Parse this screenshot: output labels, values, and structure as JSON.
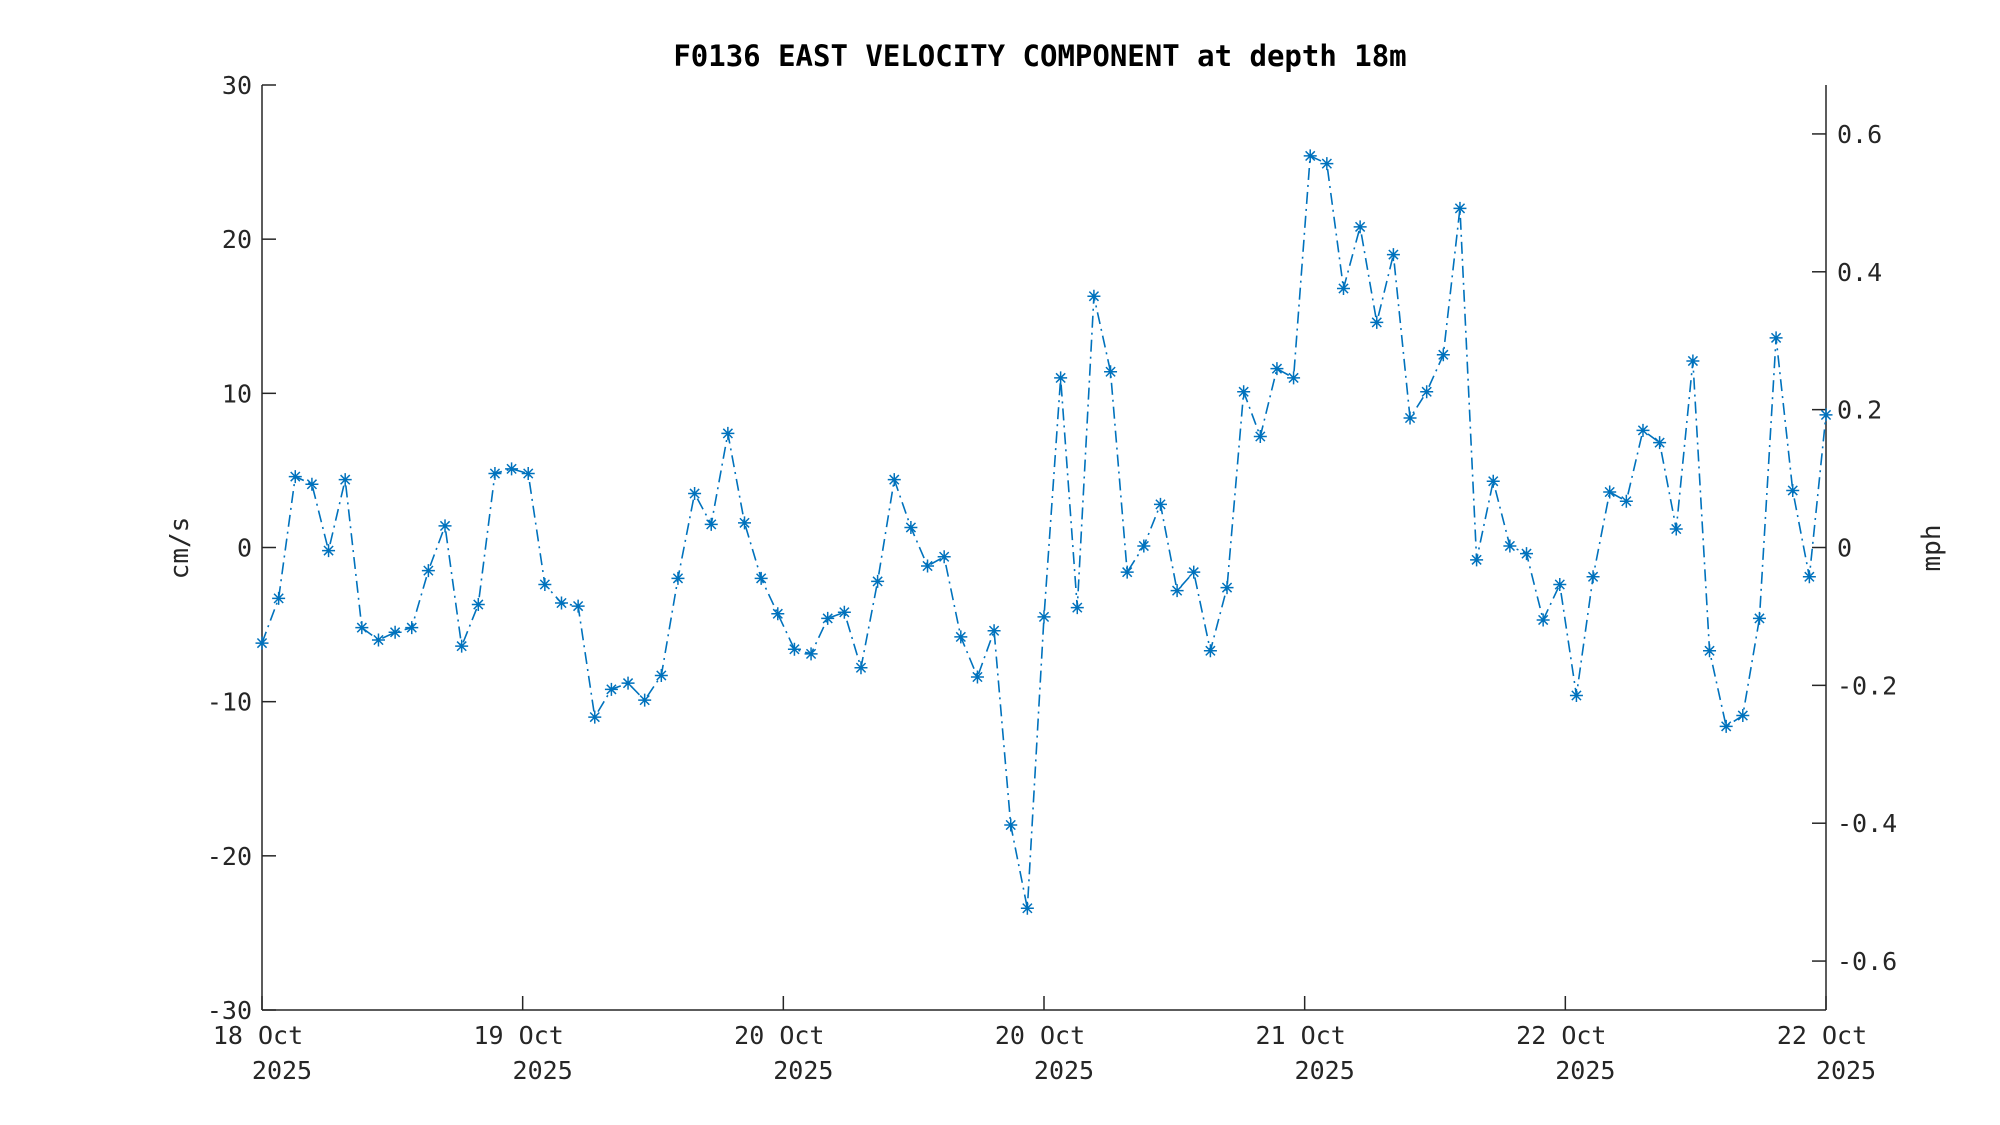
{
  "chart_data": {
    "type": "line",
    "title": "F0136 EAST VELOCITY COMPONENT at depth 18m",
    "xlabel": "",
    "ylabel_left": "cm/s",
    "ylabel_right": "mph",
    "ylim_left": [
      -30,
      30
    ],
    "ylim_right": [
      -0.671,
      0.671
    ],
    "y_ticks_left": [
      -30,
      -20,
      -10,
      0,
      10,
      20,
      30
    ],
    "y_tick_labels_left": [
      "-30",
      "-20",
      "-10",
      "0",
      "10",
      "20",
      "30"
    ],
    "y_ticks_right": [
      -0.6,
      -0.4,
      -0.2,
      0,
      0.2,
      0.4,
      0.6
    ],
    "y_tick_labels_right": [
      "-0.6",
      "-0.4",
      "-0.2",
      "0",
      "0.2",
      "0.4",
      "0.6"
    ],
    "x_tick_labels": [
      {
        "line1": "18 Oct",
        "line2": "2025"
      },
      {
        "line1": "19 Oct",
        "line2": "2025"
      },
      {
        "line1": "20 Oct",
        "line2": "2025"
      },
      {
        "line1": "20 Oct",
        "line2": "2025"
      },
      {
        "line1": "21 Oct",
        "line2": "2025"
      },
      {
        "line1": "22 Oct",
        "line2": "2025"
      },
      {
        "line1": "22 Oct",
        "line2": "2025"
      }
    ],
    "grid": false,
    "line_style": "dash-dot",
    "marker": "asterisk",
    "colors": {
      "series": "#0072BD",
      "axes": "#262626",
      "background": "#ffffff"
    },
    "series": [
      {
        "values": [
          -6.2,
          -3.3,
          4.6,
          4.1,
          -0.2,
          4.4,
          -5.2,
          -6.0,
          -5.5,
          -5.2,
          -1.5,
          1.4,
          -6.4,
          -3.7,
          4.8,
          5.1,
          4.8,
          -2.4,
          -3.6,
          -3.8,
          -11.0,
          -9.2,
          -8.8,
          -9.9,
          -8.3,
          -2.0,
          3.5,
          1.5,
          7.4,
          1.6,
          -2.0,
          -4.3,
          -6.6,
          -6.9,
          -4.6,
          -4.2,
          -7.8,
          -2.2,
          4.4,
          1.3,
          -1.2,
          -0.6,
          -5.8,
          -8.4,
          -5.4,
          -18.0,
          -23.4,
          -4.5,
          11.0,
          -3.9,
          16.3,
          11.4,
          -1.6,
          0.1,
          2.8,
          -2.8,
          -1.6,
          -6.7,
          -2.6,
          10.1,
          7.2,
          11.6,
          11.0,
          25.4,
          24.9,
          16.8,
          20.8,
          14.6,
          19.0,
          8.4,
          10.1,
          12.5,
          22.0,
          -0.8,
          4.3,
          0.1,
          -0.4,
          -4.7,
          -2.4,
          -9.6,
          -1.9,
          3.6,
          3.0,
          7.6,
          6.8,
          1.2,
          12.1,
          -6.7,
          -11.6,
          -10.9,
          -4.6,
          13.6,
          3.7,
          -1.9,
          8.6
        ]
      }
    ]
  }
}
